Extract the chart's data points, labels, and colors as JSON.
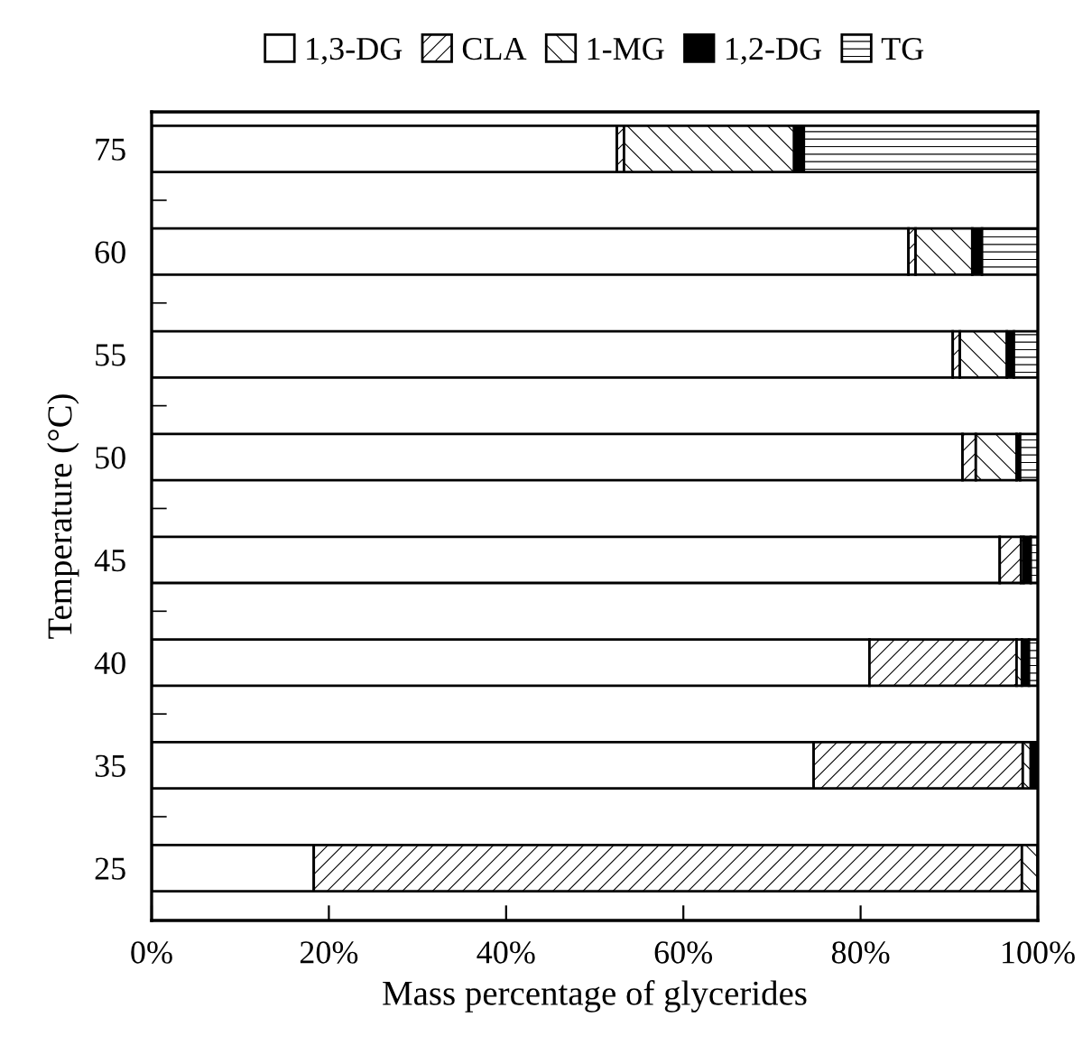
{
  "chart_data": {
    "type": "bar",
    "orientation": "horizontal",
    "stacked": true,
    "xlabel": "Mass percentage of glycerides",
    "ylabel": "Temperature (°C)",
    "categories": [
      "75",
      "60",
      "55",
      "50",
      "45",
      "40",
      "35",
      "25"
    ],
    "series": [
      {
        "name": "1,3-DG",
        "color": "#ffffff",
        "values": [
          52.5,
          85.4,
          90.4,
          91.5,
          95.7,
          81.0,
          74.7,
          18.3
        ]
      },
      {
        "name": "CLA",
        "color": "#000000",
        "values": [
          0.8,
          0.8,
          0.8,
          1.5,
          2.4,
          16.6,
          23.6,
          79.9
        ]
      },
      {
        "name": "1-MG",
        "color": "#000000",
        "values": [
          19.2,
          6.4,
          5.3,
          4.6,
          0.3,
          0.6,
          0.9,
          1.8
        ]
      },
      {
        "name": "1,2-DG",
        "color": "#000000",
        "values": [
          1.1,
          1.1,
          0.8,
          0.4,
          0.8,
          0.8,
          0.8,
          0
        ]
      },
      {
        "name": "TG",
        "color": "#000000",
        "values": [
          26.4,
          6.3,
          2.7,
          2.0,
          0.8,
          1.0,
          0,
          0
        ]
      }
    ],
    "xlim": [
      0,
      100
    ],
    "xticks": [
      {
        "value": 0,
        "label": "0%"
      },
      {
        "value": 20,
        "label": "20%"
      },
      {
        "value": 40,
        "label": "40%"
      },
      {
        "value": 60,
        "label": "60%"
      },
      {
        "value": 80,
        "label": "80%"
      },
      {
        "value": 100,
        "label": "100%"
      }
    ],
    "legend": "top",
    "grid": false
  }
}
